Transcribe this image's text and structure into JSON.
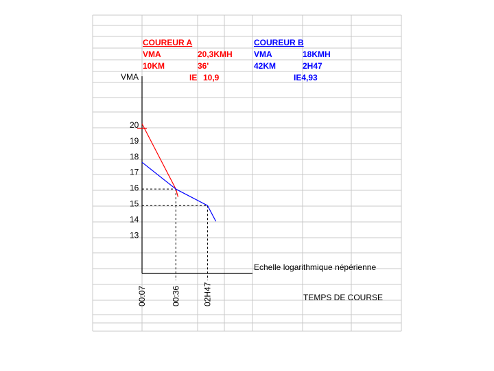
{
  "runner_a": {
    "title": "COUREUR A",
    "vma_label": "VMA",
    "vma_value": "20,3KMH",
    "dist_label": "10KM",
    "time_value": "36'",
    "ie_label": "IE",
    "ie_value": "10,9",
    "color": "#ff0000"
  },
  "runner_b": {
    "title": "COUREUR B",
    "vma_label": "VMA",
    "vma_value": "18KMH",
    "dist_label": "42KM",
    "time_value": "2H47",
    "ie_text": "IE4,93",
    "color": "#0000ff"
  },
  "chart_data": {
    "type": "line",
    "ylabel": "VMA",
    "xlabel": "TEMPS DE COURSE",
    "annotation": "Echelle logarithmique népérienne",
    "x_scale": "log",
    "yticks": [
      "20",
      "19",
      "18",
      "17",
      "16",
      "15",
      "14",
      "13"
    ],
    "xticks": [
      "00:07",
      "00:36",
      "02H47"
    ],
    "ylim": [
      12,
      20.5
    ],
    "xlim_minutes": [
      7,
      250
    ],
    "series": [
      {
        "color": "#ff0000",
        "x_minutes": [
          7,
          36,
          40
        ],
        "y": [
          20.3,
          16.15,
          15.65
        ]
      },
      {
        "color": "#0000ff",
        "x_minutes": [
          7,
          36,
          167,
          250
        ],
        "y": [
          17.85,
          16.15,
          15.1,
          14.1
        ]
      }
    ],
    "reference_points": [
      {
        "x_minutes": 36,
        "y": 16.15
      },
      {
        "x_minutes": 167,
        "y": 15.1
      }
    ]
  }
}
